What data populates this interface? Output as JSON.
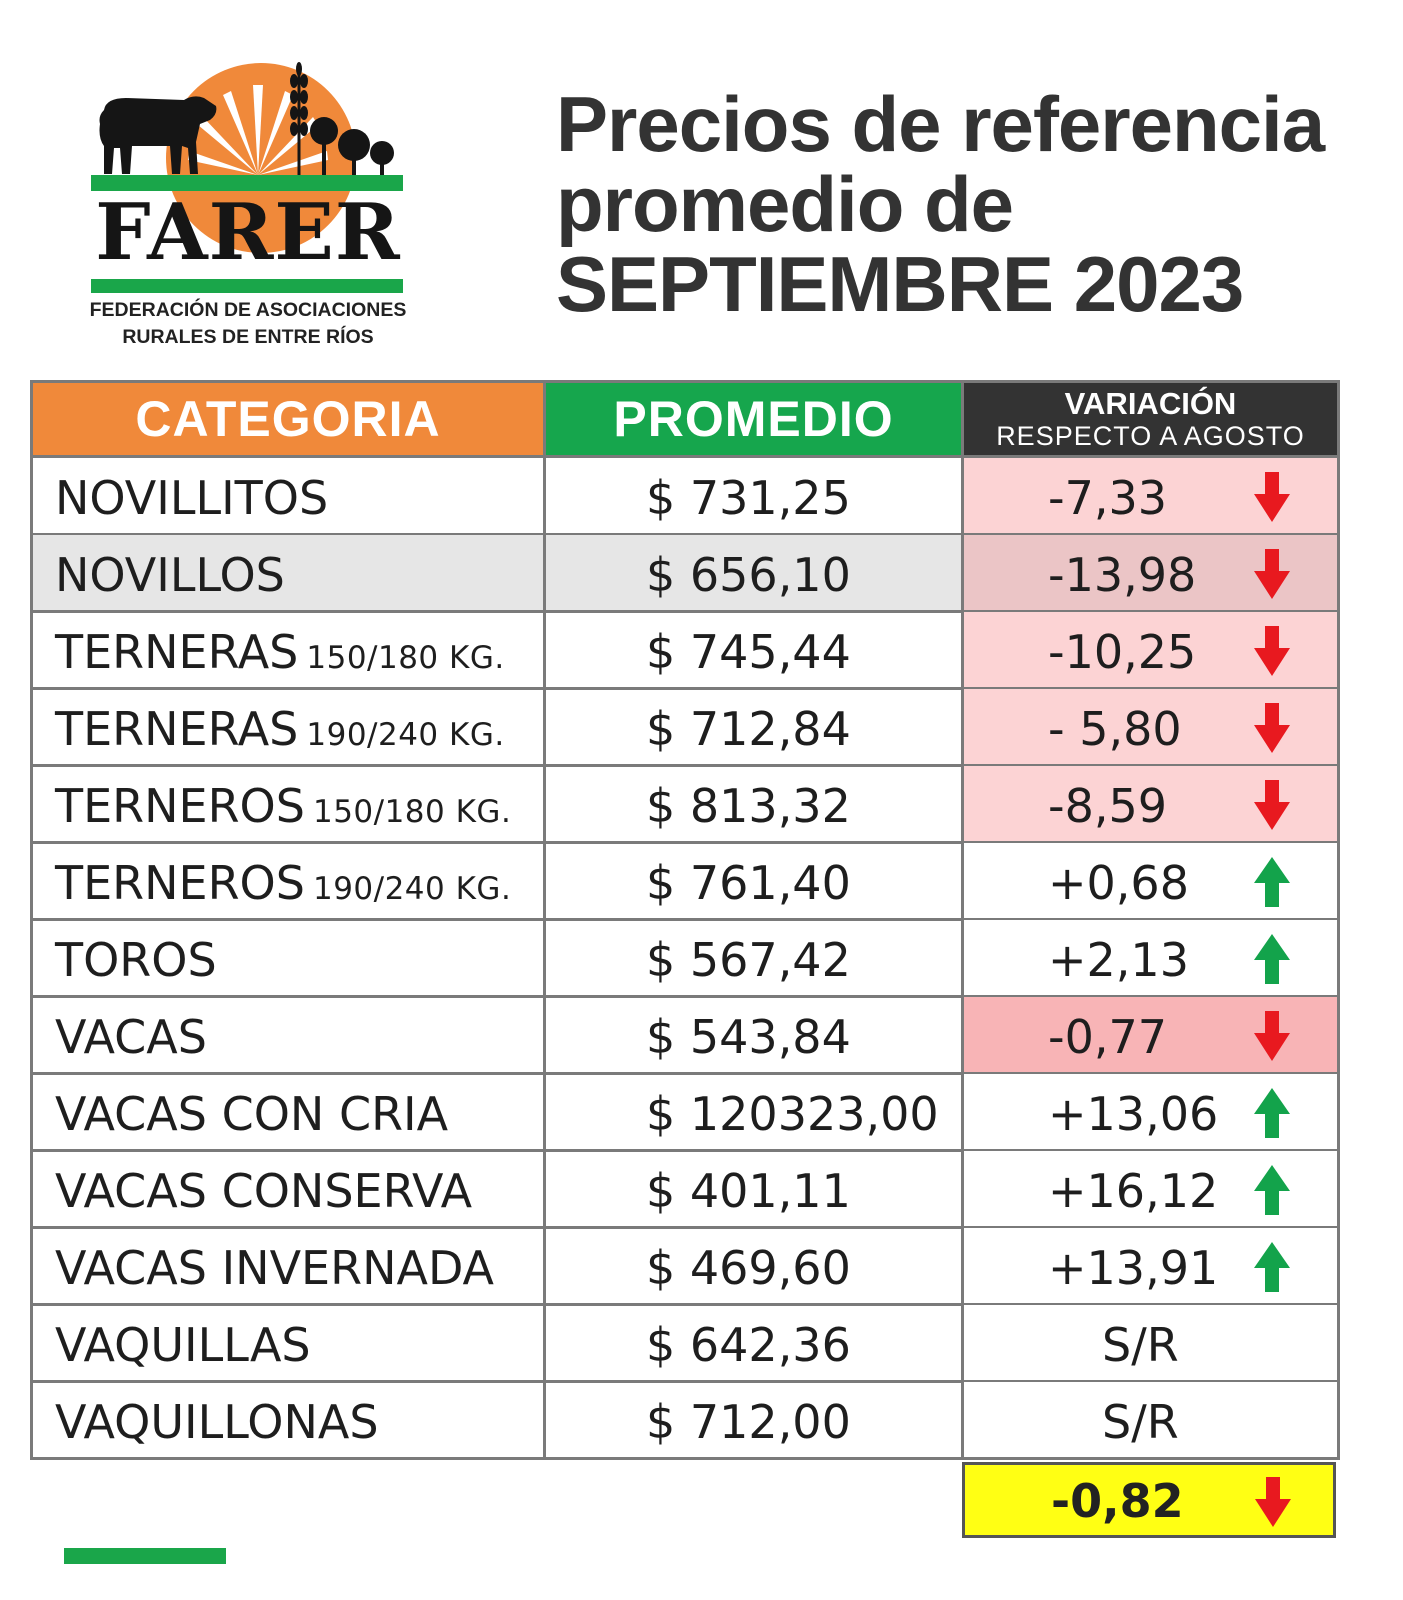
{
  "logo": {
    "wordmark": "FARER",
    "subtitle_line1": "FEDERACIÓN DE ASOCIACIONES",
    "subtitle_line2": "RURALES DE ENTRE RÍOS"
  },
  "title": {
    "line1": "Precios de referencia",
    "line2": "promedio de",
    "line3": "SEPTIEMBRE 2023"
  },
  "table": {
    "headers": {
      "categoria": "CATEGORIA",
      "promedio": "PROMEDIO",
      "variacion": "VARIACIÓN",
      "variacion_sub": "RESPECTO A AGOSTO"
    },
    "rows": [
      {
        "name": "NOVILLITOS",
        "kg": "",
        "avg": "$ 731,25",
        "var": "-7,33",
        "dir": "down"
      },
      {
        "name": "NOVILLOS",
        "kg": "",
        "avg": "$ 656,10",
        "var": "-13,98",
        "dir": "down"
      },
      {
        "name": "TERNERAS",
        "kg": "150/180 KG.",
        "avg": "$ 745,44",
        "var": "-10,25",
        "dir": "down"
      },
      {
        "name": "TERNERAS",
        "kg": "190/240 KG.",
        "avg": "$ 712,84",
        "var": "- 5,80",
        "dir": "down"
      },
      {
        "name": "TERNEROS",
        "kg": "150/180 KG.",
        "avg": "$ 813,32",
        "var": "-8,59",
        "dir": "down"
      },
      {
        "name": "TERNEROS",
        "kg": "190/240 KG.",
        "avg": "$ 761,40",
        "var": "+0,68",
        "dir": "up"
      },
      {
        "name": "TOROS",
        "kg": "",
        "avg": "$ 567,42",
        "var": "+2,13",
        "dir": "up"
      },
      {
        "name": "VACAS",
        "kg": "",
        "avg": "$ 543,84",
        "var": "-0,77",
        "dir": "down"
      },
      {
        "name": "VACAS CON CRIA",
        "kg": "",
        "avg": "$ 120323,00",
        "var": "+13,06",
        "dir": "up"
      },
      {
        "name": "VACAS CONSERVA",
        "kg": "",
        "avg": "$ 401,11",
        "var": "+16,12",
        "dir": "up"
      },
      {
        "name": "VACAS INVERNADA",
        "kg": "",
        "avg": "$ 469,60",
        "var": "+13,91",
        "dir": "up"
      },
      {
        "name": "VAQUILLAS",
        "kg": "",
        "avg": "$ 642,36",
        "var": "S/R",
        "dir": "none"
      },
      {
        "name": "VAQUILLONAS",
        "kg": "",
        "avg": "$ 712,00",
        "var": "S/R",
        "dir": "none"
      }
    ],
    "total_variation": "-0,82",
    "total_dir": "down"
  },
  "colors": {
    "orange": "#f0893a",
    "green": "#16a64d",
    "dark": "#333333",
    "row_alt_gray": "#e6e6e6",
    "down_bg": "#fcd3d4",
    "down_bg_dark": "#ebc5c6",
    "down_bg_strong": "#f8b4b6",
    "highlight_yellow": "#ffff14",
    "arrow_red": "#e8191f",
    "arrow_green": "#13a34b"
  }
}
